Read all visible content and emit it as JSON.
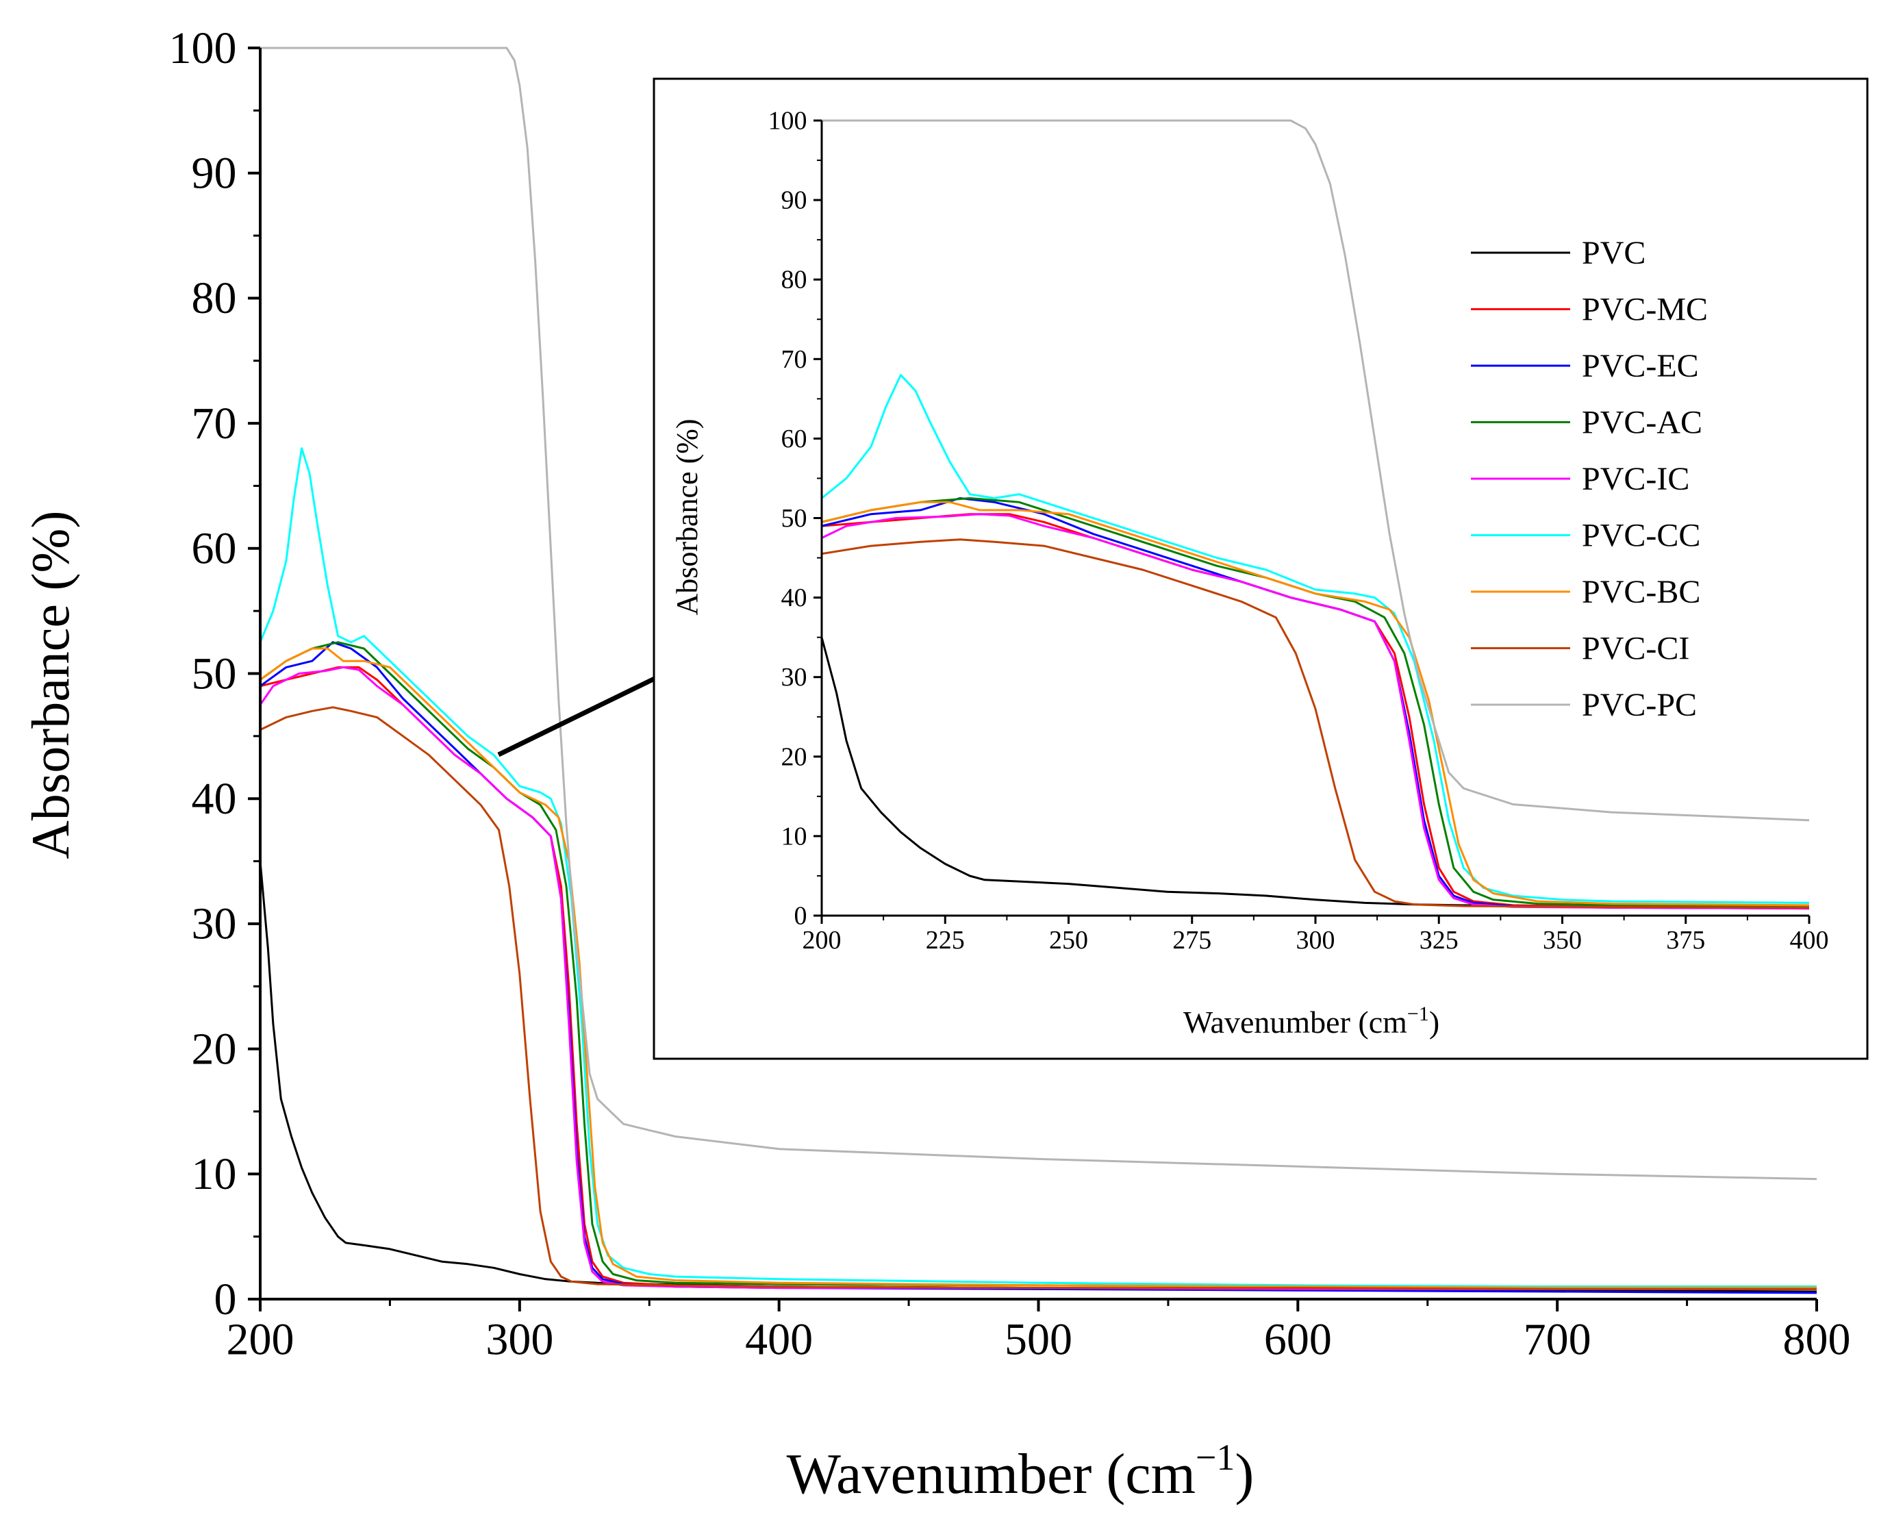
{
  "chart_data": {
    "type": "line",
    "main": {
      "xlabel": "Wavenumber (cm",
      "xlabel_sup": "−1",
      "xlabel_close": ")",
      "ylabel": "Absorbance (%)",
      "xlim": [
        200,
        800
      ],
      "ylim": [
        0,
        100
      ],
      "xticks": [
        "200",
        "300",
        "400",
        "500",
        "600",
        "700",
        "800"
      ],
      "yticks": [
        "0",
        "10",
        "20",
        "30",
        "40",
        "50",
        "60",
        "70",
        "80",
        "90",
        "100"
      ]
    },
    "inset": {
      "xlabel": "Wavenumber (cm",
      "xlabel_sup": "−1",
      "xlabel_close": ")",
      "ylabel": "Absorbance (%)",
      "xlim": [
        200,
        400
      ],
      "ylim": [
        0,
        100
      ],
      "xticks": [
        "200",
        "225",
        "250",
        "275",
        "300",
        "325",
        "350",
        "375",
        "400"
      ],
      "yticks": [
        "0",
        "10",
        "20",
        "30",
        "40",
        "50",
        "60",
        "70",
        "80",
        "90",
        "100"
      ]
    },
    "legend_position": "top-right of inset",
    "series": [
      {
        "name": "PVC",
        "color": "#000000",
        "points": [
          [
            200,
            35
          ],
          [
            203,
            28
          ],
          [
            205,
            22
          ],
          [
            208,
            16
          ],
          [
            212,
            13
          ],
          [
            216,
            10.5
          ],
          [
            220,
            8.5
          ],
          [
            225,
            6.5
          ],
          [
            230,
            5
          ],
          [
            233,
            4.5
          ],
          [
            240,
            4.3
          ],
          [
            250,
            4
          ],
          [
            260,
            3.5
          ],
          [
            270,
            3
          ],
          [
            280,
            2.8
          ],
          [
            290,
            2.5
          ],
          [
            300,
            2
          ],
          [
            310,
            1.6
          ],
          [
            320,
            1.4
          ],
          [
            330,
            1.3
          ],
          [
            350,
            1.2
          ],
          [
            400,
            1
          ],
          [
            500,
            0.9
          ],
          [
            600,
            0.8
          ],
          [
            700,
            0.7
          ],
          [
            800,
            0.6
          ]
        ]
      },
      {
        "name": "PVC-MC",
        "color": "#ff0000",
        "points": [
          [
            200,
            49
          ],
          [
            210,
            49.5
          ],
          [
            220,
            50
          ],
          [
            230,
            50.5
          ],
          [
            238,
            50.5
          ],
          [
            245,
            49.5
          ],
          [
            255,
            47.5
          ],
          [
            265,
            45.5
          ],
          [
            275,
            43.5
          ],
          [
            285,
            42
          ],
          [
            295,
            40
          ],
          [
            305,
            38.5
          ],
          [
            312,
            37
          ],
          [
            316,
            33
          ],
          [
            319,
            25
          ],
          [
            322,
            14
          ],
          [
            325,
            6
          ],
          [
            328,
            3
          ],
          [
            332,
            1.8
          ],
          [
            340,
            1.3
          ],
          [
            360,
            1.1
          ],
          [
            400,
            1
          ],
          [
            500,
            0.9
          ],
          [
            600,
            0.8
          ],
          [
            700,
            0.8
          ],
          [
            800,
            0.8
          ]
        ]
      },
      {
        "name": "PVC-EC",
        "color": "#0000ff",
        "points": [
          [
            200,
            49
          ],
          [
            210,
            50.5
          ],
          [
            220,
            51
          ],
          [
            228,
            52.5
          ],
          [
            235,
            52
          ],
          [
            245,
            50.5
          ],
          [
            255,
            48
          ],
          [
            265,
            46
          ],
          [
            275,
            44
          ],
          [
            285,
            42
          ],
          [
            295,
            40
          ],
          [
            305,
            38.5
          ],
          [
            312,
            37
          ],
          [
            316,
            32
          ],
          [
            319,
            23
          ],
          [
            322,
            12
          ],
          [
            325,
            5
          ],
          [
            328,
            2.5
          ],
          [
            332,
            1.6
          ],
          [
            340,
            1.2
          ],
          [
            360,
            1
          ],
          [
            400,
            0.9
          ],
          [
            500,
            0.8
          ],
          [
            600,
            0.7
          ],
          [
            700,
            0.6
          ],
          [
            800,
            0.5
          ]
        ]
      },
      {
        "name": "PVC-AC",
        "color": "#008000",
        "points": [
          [
            200,
            49.5
          ],
          [
            210,
            51
          ],
          [
            220,
            52
          ],
          [
            230,
            52.5
          ],
          [
            240,
            52
          ],
          [
            250,
            50
          ],
          [
            260,
            48
          ],
          [
            270,
            46
          ],
          [
            280,
            44
          ],
          [
            290,
            42.5
          ],
          [
            300,
            40.5
          ],
          [
            308,
            39.5
          ],
          [
            314,
            37.5
          ],
          [
            318,
            33
          ],
          [
            322,
            24
          ],
          [
            325,
            14
          ],
          [
            328,
            6
          ],
          [
            332,
            3
          ],
          [
            336,
            2
          ],
          [
            345,
            1.5
          ],
          [
            360,
            1.3
          ],
          [
            400,
            1.2
          ],
          [
            500,
            1.1
          ],
          [
            600,
            1
          ],
          [
            700,
            1
          ],
          [
            800,
            1
          ]
        ]
      },
      {
        "name": "PVC-IC",
        "color": "#ff00ff",
        "points": [
          [
            200,
            47.5
          ],
          [
            205,
            49
          ],
          [
            215,
            50
          ],
          [
            225,
            50.2
          ],
          [
            232,
            50.5
          ],
          [
            238,
            50.3
          ],
          [
            245,
            49
          ],
          [
            255,
            47.5
          ],
          [
            265,
            45.5
          ],
          [
            275,
            43.5
          ],
          [
            285,
            42
          ],
          [
            295,
            40
          ],
          [
            305,
            38.5
          ],
          [
            312,
            37
          ],
          [
            316,
            32
          ],
          [
            319,
            22
          ],
          [
            322,
            11
          ],
          [
            325,
            4.5
          ],
          [
            328,
            2.2
          ],
          [
            332,
            1.4
          ],
          [
            340,
            1.1
          ],
          [
            360,
            1
          ],
          [
            400,
            0.9
          ],
          [
            500,
            0.9
          ],
          [
            600,
            0.8
          ],
          [
            700,
            0.8
          ],
          [
            800,
            0.8
          ]
        ]
      },
      {
        "name": "PVC-CC",
        "color": "#00ffff",
        "points": [
          [
            200,
            52.5
          ],
          [
            205,
            55
          ],
          [
            210,
            59
          ],
          [
            213,
            64
          ],
          [
            216,
            68
          ],
          [
            219,
            66
          ],
          [
            222,
            62
          ],
          [
            226,
            57
          ],
          [
            230,
            53
          ],
          [
            235,
            52.5
          ],
          [
            240,
            53
          ],
          [
            245,
            52
          ],
          [
            250,
            51
          ],
          [
            260,
            49
          ],
          [
            270,
            47
          ],
          [
            280,
            45
          ],
          [
            290,
            43.5
          ],
          [
            300,
            41
          ],
          [
            308,
            40.5
          ],
          [
            312,
            40
          ],
          [
            316,
            38
          ],
          [
            320,
            32
          ],
          [
            324,
            22
          ],
          [
            327,
            12
          ],
          [
            330,
            6
          ],
          [
            334,
            3.5
          ],
          [
            340,
            2.5
          ],
          [
            350,
            2
          ],
          [
            360,
            1.8
          ],
          [
            400,
            1.6
          ],
          [
            500,
            1.3
          ],
          [
            600,
            1.1
          ],
          [
            700,
            1
          ],
          [
            800,
            1
          ]
        ]
      },
      {
        "name": "PVC-BC",
        "color": "#ff8c00",
        "points": [
          [
            200,
            49.5
          ],
          [
            210,
            51
          ],
          [
            220,
            52
          ],
          [
            226,
            52
          ],
          [
            232,
            51
          ],
          [
            240,
            51
          ],
          [
            250,
            50.5
          ],
          [
            260,
            48.5
          ],
          [
            270,
            46.5
          ],
          [
            280,
            44.5
          ],
          [
            290,
            42.5
          ],
          [
            300,
            40.5
          ],
          [
            310,
            39.5
          ],
          [
            315,
            38.5
          ],
          [
            319,
            35
          ],
          [
            323,
            27
          ],
          [
            326,
            18
          ],
          [
            329,
            9
          ],
          [
            332,
            4.5
          ],
          [
            336,
            2.8
          ],
          [
            345,
            1.8
          ],
          [
            360,
            1.5
          ],
          [
            400,
            1.3
          ],
          [
            500,
            1.1
          ],
          [
            600,
            1
          ],
          [
            700,
            0.9
          ],
          [
            800,
            0.9
          ]
        ]
      },
      {
        "name": "PVC-CI",
        "color": "#c04000",
        "points": [
          [
            200,
            45.5
          ],
          [
            210,
            46.5
          ],
          [
            220,
            47
          ],
          [
            228,
            47.3
          ],
          [
            235,
            47
          ],
          [
            245,
            46.5
          ],
          [
            255,
            45
          ],
          [
            265,
            43.5
          ],
          [
            275,
            41.5
          ],
          [
            285,
            39.5
          ],
          [
            292,
            37.5
          ],
          [
            296,
            33
          ],
          [
            300,
            26
          ],
          [
            304,
            16
          ],
          [
            308,
            7
          ],
          [
            312,
            3
          ],
          [
            316,
            1.8
          ],
          [
            320,
            1.4
          ],
          [
            330,
            1.2
          ],
          [
            360,
            1.1
          ],
          [
            400,
            1
          ],
          [
            500,
            0.9
          ],
          [
            600,
            0.9
          ],
          [
            700,
            0.8
          ],
          [
            800,
            0.8
          ]
        ]
      },
      {
        "name": "PVC-PC",
        "color": "#b4b4b4",
        "points": [
          [
            200,
            100
          ],
          [
            290,
            100
          ],
          [
            295,
            100
          ],
          [
            298,
            99
          ],
          [
            300,
            97
          ],
          [
            303,
            92
          ],
          [
            306,
            83
          ],
          [
            309,
            72
          ],
          [
            312,
            60
          ],
          [
            315,
            48
          ],
          [
            318,
            38
          ],
          [
            321,
            30
          ],
          [
            324,
            24
          ],
          [
            327,
            18
          ],
          [
            330,
            16
          ],
          [
            335,
            15
          ],
          [
            340,
            14
          ],
          [
            350,
            13.5
          ],
          [
            360,
            13
          ],
          [
            400,
            12
          ],
          [
            500,
            11.2
          ],
          [
            600,
            10.6
          ],
          [
            700,
            10
          ],
          [
            800,
            9.6
          ]
        ]
      }
    ]
  }
}
